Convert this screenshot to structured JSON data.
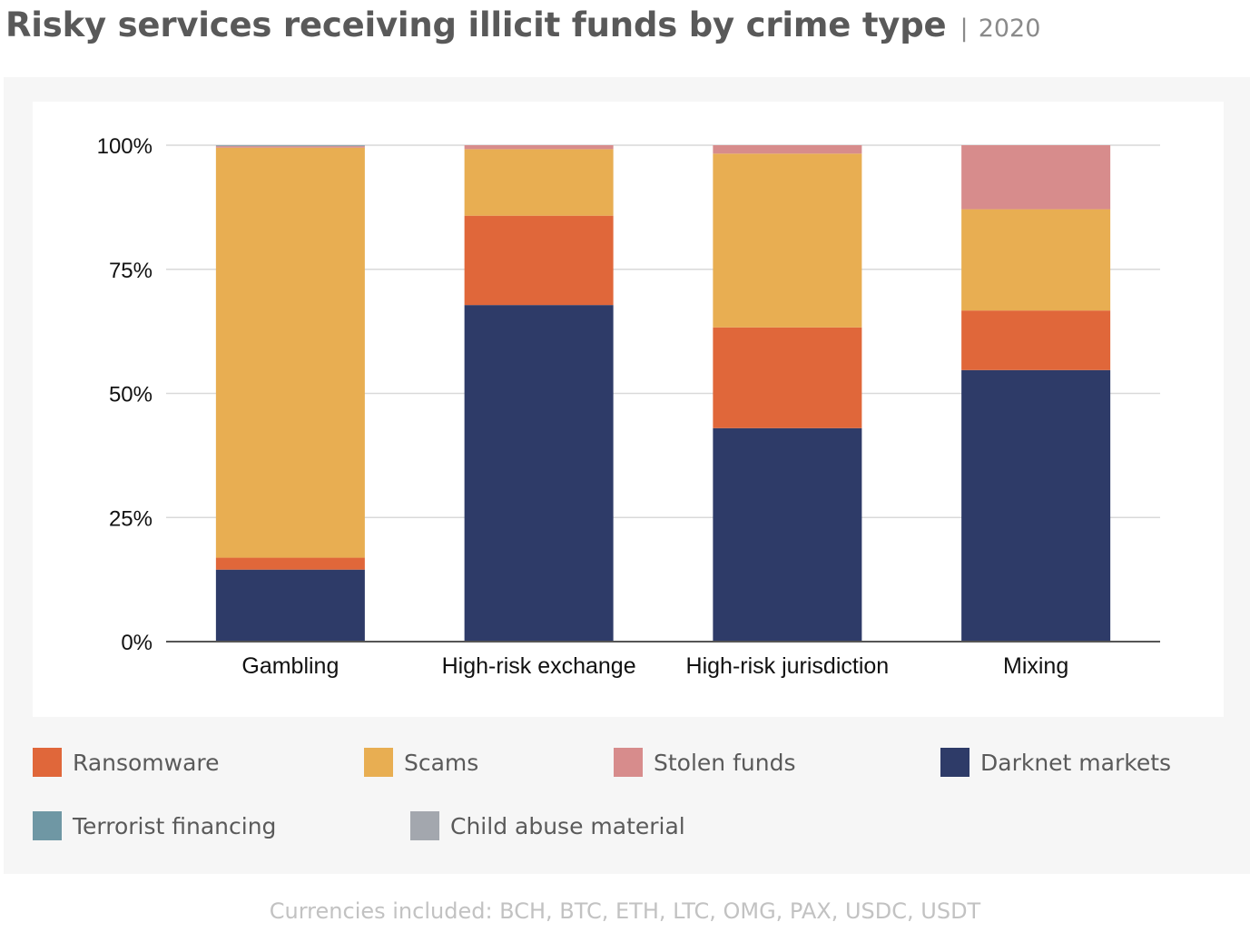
{
  "header": {
    "title": "Risky services receiving illicit funds by crime type",
    "separator": "|",
    "year": "2020"
  },
  "colors": {
    "ransomware": "#e0673a",
    "scams": "#e8ae52",
    "stolen_funds": "#d78c8c",
    "darknet_markets": "#2e3b68",
    "terrorist_financing": "#6f97a4",
    "child_abuse_material": "#a3a7ae",
    "gridline": "#d9d9d9",
    "axis": "#555555"
  },
  "chart_data": {
    "type": "bar",
    "stacked": true,
    "categories": [
      "Gambling",
      "High-risk exchange",
      "High-risk jurisdiction",
      "Mixing"
    ],
    "series": [
      {
        "name": "Darknet markets",
        "color": "#2e3b68",
        "values": [
          14.5,
          67.8,
          43.0,
          54.7
        ]
      },
      {
        "name": "Ransomware",
        "color": "#e0673a",
        "values": [
          2.4,
          18.0,
          20.3,
          12.0
        ]
      },
      {
        "name": "Scams",
        "color": "#e8ae52",
        "values": [
          82.6,
          13.4,
          35.0,
          20.4
        ]
      },
      {
        "name": "Stolen funds",
        "color": "#d78c8c",
        "values": [
          0.3,
          0.8,
          1.7,
          12.9
        ]
      },
      {
        "name": "Terrorist financing",
        "color": "#6f97a4",
        "values": [
          0.1,
          0,
          0,
          0
        ]
      },
      {
        "name": "Child abuse material",
        "color": "#a3a7ae",
        "values": [
          0.1,
          0,
          0,
          0
        ]
      }
    ],
    "yticks": [
      "0%",
      "25%",
      "50%",
      "75%",
      "100%"
    ],
    "ylim": [
      0,
      100
    ],
    "grid": true,
    "legend_position": "bottom"
  },
  "legend": {
    "items": [
      {
        "label": "Ransomware",
        "color": "#e0673a"
      },
      {
        "label": "Scams",
        "color": "#e8ae52"
      },
      {
        "label": "Stolen funds",
        "color": "#d78c8c"
      },
      {
        "label": "Darknet markets",
        "color": "#2e3b68"
      },
      {
        "label": "Terrorist financing",
        "color": "#6f97a4"
      },
      {
        "label": "Child abuse material",
        "color": "#a3a7ae"
      }
    ]
  },
  "footnote": "Currencies included: BCH, BTC, ETH, LTC, OMG, PAX, USDC, USDT"
}
